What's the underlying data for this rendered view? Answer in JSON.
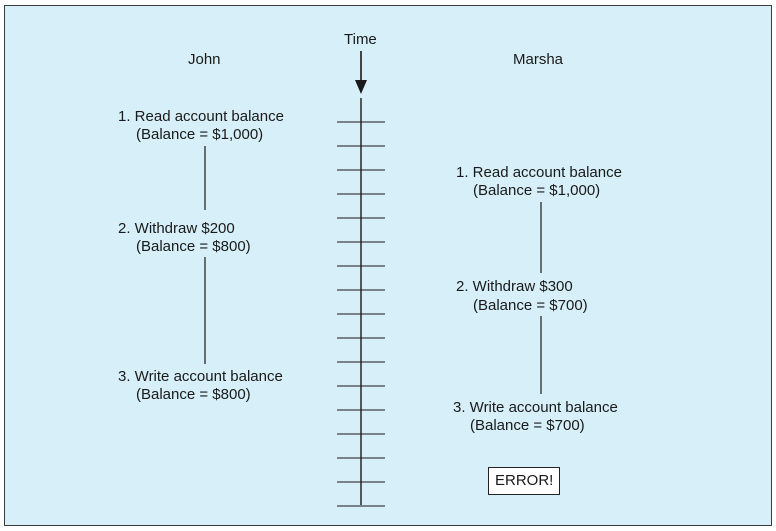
{
  "colors": {
    "background": "#d6eff8",
    "line": "#1a1a1a",
    "box_fill": "#ffffff"
  },
  "time_label": "Time",
  "timeline": {
    "tick_count": 17,
    "arrow": "down-arrow"
  },
  "john": {
    "name": "John",
    "steps": [
      {
        "label": "1. Read account balance",
        "value": "(Balance = $1,000)"
      },
      {
        "label": "2. Withdraw $200",
        "value": "(Balance = $800)"
      },
      {
        "label": "3. Write account balance",
        "value": "(Balance = $800)"
      }
    ]
  },
  "marsha": {
    "name": "Marsha",
    "steps": [
      {
        "label": "1. Read account balance",
        "value": "(Balance = $1,000)"
      },
      {
        "label": "2. Withdraw $300",
        "value": "(Balance = $700)"
      },
      {
        "label": "3. Write account balance",
        "value": "(Balance = $700)"
      }
    ]
  },
  "error_label": "ERROR!"
}
